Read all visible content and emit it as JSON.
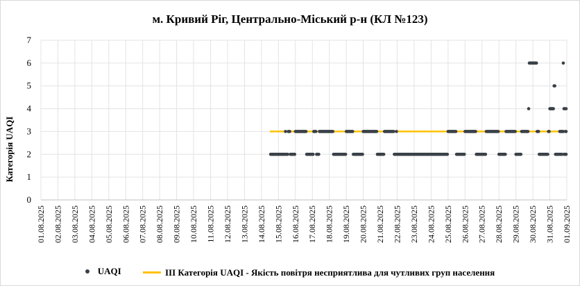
{
  "chart_data": {
    "type": "scatter",
    "title": "м. Кривий Ріг, Центрально-Міський р-н (КЛ №123)",
    "ylabel": "Категорія UAQI",
    "xlabel": "",
    "ylim": [
      0,
      7
    ],
    "yticks": [
      "0",
      "1",
      "2",
      "3",
      "4",
      "5",
      "6",
      "7"
    ],
    "x_tick_labels": [
      "01.08.2025",
      "02.08.2025",
      "03.08.2025",
      "04.08.2025",
      "05.08.2025",
      "06.08.2025",
      "07.08.2025",
      "08.08.2025",
      "09.08.2025",
      "10.08.2025",
      "11.08.2025",
      "12.08.2025",
      "13.08.2025",
      "14.08.2025",
      "15.08.2025",
      "16.08.2025",
      "17.08.2025",
      "18.08.2025",
      "19.08.2025",
      "20.08.2025",
      "21.08.2025",
      "22.08.2025",
      "23.08.2025",
      "24.08.2025",
      "25.08.2025",
      "26.08.2025",
      "27.08.2025",
      "28.08.2025",
      "29.08.2025",
      "30.08.2025",
      "31.08.2025",
      "01.09.2025"
    ],
    "grid": true,
    "legend_position": "bottom",
    "series": [
      {
        "name": "UAQI",
        "color": "#3a4148",
        "segments": [
          {
            "start": "14.08.2025 13:00",
            "end": "15.08.2025 10:00",
            "value": 2
          },
          {
            "start": "15.08.2025 10:00",
            "end": "15.08.2025 11:00",
            "value": 3
          },
          {
            "start": "15.08.2025 11:00",
            "end": "15.08.2025 14:00",
            "value": 2
          },
          {
            "start": "15.08.2025 14:00",
            "end": "15.08.2025 17:00",
            "value": 3
          },
          {
            "start": "15.08.2025 17:00",
            "end": "16.08.2025 00:00",
            "value": 2
          },
          {
            "start": "16.08.2025 00:00",
            "end": "16.08.2025 16:00",
            "value": 3
          },
          {
            "start": "16.08.2025 16:00",
            "end": "17.08.2025 02:00",
            "value": 2
          },
          {
            "start": "17.08.2025 02:00",
            "end": "17.08.2025 06:00",
            "value": 3
          },
          {
            "start": "17.08.2025 06:00",
            "end": "17.08.2025 10:00",
            "value": 2
          },
          {
            "start": "17.08.2025 10:00",
            "end": "18.08.2025 06:00",
            "value": 3
          },
          {
            "start": "18.08.2025 06:00",
            "end": "19.08.2025 00:00",
            "value": 2
          },
          {
            "start": "19.08.2025 00:00",
            "end": "19.08.2025 10:00",
            "value": 3
          },
          {
            "start": "19.08.2025 10:00",
            "end": "20.08.2025 00:00",
            "value": 2
          },
          {
            "start": "20.08.2025 00:00",
            "end": "20.08.2025 20:00",
            "value": 3
          },
          {
            "start": "20.08.2025 20:00",
            "end": "21.08.2025 06:00",
            "value": 2
          },
          {
            "start": "21.08.2025 06:00",
            "end": "21.08.2025 20:00",
            "value": 3
          },
          {
            "start": "21.08.2025 20:00",
            "end": "21.08.2025 23:00",
            "value": 2
          },
          {
            "start": "21.08.2025 23:00",
            "end": "22.08.2025 00:00",
            "value": 3
          },
          {
            "start": "22.08.2025 00:00",
            "end": "25.08.2025 00:00",
            "value": 2
          },
          {
            "start": "25.08.2025 00:00",
            "end": "25.08.2025 12:00",
            "value": 3
          },
          {
            "start": "25.08.2025 12:00",
            "end": "26.08.2025 00:00",
            "value": 2
          },
          {
            "start": "26.08.2025 00:00",
            "end": "26.08.2025 16:00",
            "value": 3
          },
          {
            "start": "26.08.2025 16:00",
            "end": "27.08.2025 06:00",
            "value": 2
          },
          {
            "start": "27.08.2025 06:00",
            "end": "28.08.2025 00:00",
            "value": 3
          },
          {
            "start": "28.08.2025 00:00",
            "end": "28.08.2025 10:00",
            "value": 2
          },
          {
            "start": "28.08.2025 10:00",
            "end": "29.08.2025 00:00",
            "value": 3
          },
          {
            "start": "29.08.2025 00:00",
            "end": "29.08.2025 08:00",
            "value": 2
          },
          {
            "start": "29.08.2025 08:00",
            "end": "29.08.2025 18:00",
            "value": 3
          },
          {
            "start": "29.08.2025 18:00",
            "end": "29.08.2025 19:00",
            "value": 4
          },
          {
            "start": "29.08.2025 19:00",
            "end": "29.08.2025 20:00",
            "value": 6
          },
          {
            "start": "29.08.2025 20:00",
            "end": "30.08.2025 06:00",
            "value": 6
          },
          {
            "start": "30.08.2025 06:00",
            "end": "30.08.2025 09:00",
            "value": 3
          },
          {
            "start": "30.08.2025 09:00",
            "end": "30.08.2025 22:00",
            "value": 2
          },
          {
            "start": "30.08.2025 22:00",
            "end": "31.08.2025 00:00",
            "value": 3
          },
          {
            "start": "31.08.2025 00:00",
            "end": "31.08.2025 06:00",
            "value": 4
          },
          {
            "start": "31.08.2025 06:00",
            "end": "31.08.2025 08:00",
            "value": 5
          },
          {
            "start": "31.08.2025 08:00",
            "end": "31.08.2025 14:00",
            "value": 2
          },
          {
            "start": "31.08.2025 14:00",
            "end": "31.08.2025 20:00",
            "value": 3
          },
          {
            "start": "31.08.2025 20:00",
            "end": "31.08.2025 22:00",
            "value": 4
          },
          {
            "start": "31.08.2025 22:00",
            "end": "01.09.2025 00:00",
            "value": 3
          }
        ],
        "extra_points": [
          {
            "x": "31.08.2025 14:00",
            "value": 2
          },
          {
            "x": "31.08.2025 15:00",
            "value": 2
          },
          {
            "x": "31.08.2025 16:00",
            "value": 2
          },
          {
            "x": "31.08.2025 17:00",
            "value": 2
          },
          {
            "x": "31.08.2025 20:00",
            "value": 2
          },
          {
            "x": "31.08.2025 21:00",
            "value": 2
          },
          {
            "x": "31.08.2025 22:00",
            "value": 2
          },
          {
            "x": "31.08.2025 23:00",
            "value": 2
          },
          {
            "x": "31.08.2025 23:00",
            "value": 4
          },
          {
            "x": "31.08.2025 19:00",
            "value": 6
          }
        ]
      },
      {
        "name": "ІІІ Категорія UAQI - Якість повітря несприятлива для чутливих груп населення",
        "type": "line",
        "color": "#ffc000",
        "x_start": "14.08.2025 12:00",
        "x_end": "01.09.2025 00:00",
        "value": 3
      }
    ]
  }
}
